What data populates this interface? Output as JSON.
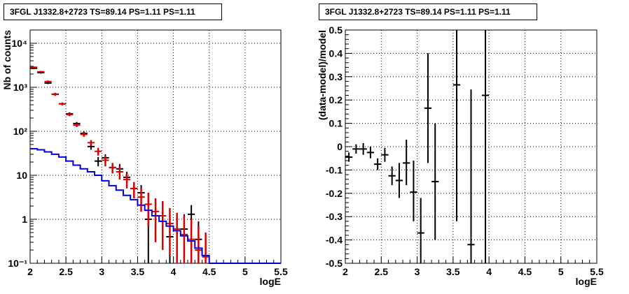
{
  "chart_data": [
    {
      "type": "scatter",
      "title": "3FGL J1332.8+2723 TS=89.14 PS=1.11 PS=1.11",
      "xlabel": "logE",
      "ylabel": "Nb of counts",
      "xlim": [
        2,
        5.5
      ],
      "ylim": [
        0.1,
        20000
      ],
      "yscale": "log",
      "grid": true,
      "xticks": [
        "2",
        "2.5",
        "3",
        "3.5",
        "4",
        "4.5",
        "5",
        "5.5"
      ],
      "yticks": [
        {
          "v": 0.1,
          "label": "10⁻¹"
        },
        {
          "v": 1,
          "label": "1"
        },
        {
          "v": 10,
          "label": "10"
        },
        {
          "v": 100,
          "label": "10²"
        },
        {
          "v": 1000,
          "label": "10³"
        },
        {
          "v": 10000,
          "label": "10⁴"
        }
      ],
      "series": [
        {
          "kind": "data-points",
          "color": "#000000",
          "x": [
            2.05,
            2.15,
            2.25,
            2.35,
            2.45,
            2.55,
            2.65,
            2.75,
            2.85,
            2.95,
            3.05,
            3.15,
            3.25,
            3.35,
            3.45,
            3.55,
            3.65,
            3.75,
            3.85,
            3.95,
            4.05,
            4.15,
            4.25,
            4.35,
            4.45
          ],
          "y": [
            2700,
            2150,
            1250,
            690,
            420,
            250,
            150,
            90,
            45,
            21,
            25,
            15,
            14,
            9,
            5,
            4,
            1,
            0.1,
            0.1,
            0.4,
            0.1,
            0.6,
            1.3,
            0.35,
            0.1
          ],
          "ylo": [
            2600,
            2050,
            1180,
            640,
            390,
            230,
            138,
            80,
            38,
            16,
            20,
            11,
            10,
            6,
            3,
            2,
            0.1,
            0.1,
            0.1,
            0.1,
            0.1,
            0.1,
            0.7,
            0.1,
            0.1
          ],
          "yhi": [
            2800,
            2250,
            1320,
            740,
            450,
            270,
            162,
            100,
            52,
            26,
            30,
            19,
            18,
            12,
            7,
            6,
            3,
            0.1,
            0.1,
            1.1,
            0.1,
            1.3,
            2.1,
            0.9,
            0.1
          ]
        },
        {
          "kind": "data-points",
          "color": "#dd0000",
          "x": [
            2.05,
            2.15,
            2.25,
            2.35,
            2.45,
            2.55,
            2.65,
            2.75,
            2.85,
            2.95,
            3.05,
            3.15,
            3.25,
            3.35,
            3.45,
            3.55,
            3.65,
            3.75,
            3.85,
            3.95,
            4.05,
            4.15,
            4.25,
            4.35,
            4.45
          ],
          "y": [
            2850,
            2250,
            1350,
            700,
            420,
            240,
            138,
            85,
            55,
            35,
            22,
            15,
            12,
            8,
            5,
            3.2,
            2.2,
            1.5,
            1.2,
            0.8,
            0.6,
            0.45,
            0.35,
            0.2,
            0.14
          ],
          "ylo": [
            2750,
            2150,
            1270,
            650,
            390,
            220,
            125,
            75,
            47,
            28,
            16,
            11,
            8,
            5,
            3,
            1.5,
            0.7,
            0.3,
            0.2,
            0.15,
            0.1,
            0.1,
            0.1,
            0.1,
            0.1
          ],
          "yhi": [
            2950,
            2350,
            1430,
            750,
            450,
            260,
            151,
            95,
            63,
            42,
            28,
            19,
            16,
            11,
            7,
            5,
            4,
            3,
            2.6,
            1.8,
            1.4,
            1.2,
            1.0,
            0.7,
            0.5
          ]
        },
        {
          "kind": "histogram",
          "color": "#0000dd",
          "edges": [
            2.0,
            2.1,
            2.2,
            2.3,
            2.4,
            2.5,
            2.6,
            2.7,
            2.8,
            2.9,
            3.0,
            3.1,
            3.2,
            3.3,
            3.4,
            3.5,
            3.6,
            3.7,
            3.8,
            3.9,
            4.0,
            4.1,
            4.2,
            4.3,
            4.4,
            4.5,
            4.6,
            4.7,
            4.8,
            4.9,
            5.0,
            5.1,
            5.2,
            5.3,
            5.4,
            5.5
          ],
          "values": [
            40,
            38,
            34,
            30,
            26,
            21,
            17,
            14,
            12,
            10,
            7.5,
            5.8,
            4.6,
            3.5,
            2.8,
            2.1,
            1.6,
            1.2,
            0.9,
            0.7,
            0.55,
            0.42,
            0.32,
            0.22,
            0.15,
            0.1,
            0.1,
            0.1,
            0.1,
            0.1,
            0.1,
            0.1,
            0.1,
            0.1,
            0.1
          ]
        }
      ]
    },
    {
      "type": "scatter",
      "title": "3FGL J1332.8+2723 TS=89.14 PS=1.11 PS=1.11",
      "xlabel": "logE",
      "ylabel": "(data-model)/model",
      "xlim": [
        2,
        5.5
      ],
      "ylim": [
        -0.5,
        0.5
      ],
      "grid": true,
      "xticks": [
        "2",
        "2.5",
        "3",
        "3.5",
        "4",
        "4.5",
        "5",
        "5.5"
      ],
      "yticks": [
        "-0.5",
        "-0.4",
        "-0.3",
        "-0.2",
        "-0.1",
        "0",
        "0.1",
        "0.2",
        "0.3",
        "0.4",
        "0.5"
      ],
      "series": [
        {
          "kind": "data-points",
          "color": "#000000",
          "x": [
            2.05,
            2.15,
            2.25,
            2.35,
            2.45,
            2.55,
            2.65,
            2.75,
            2.85,
            2.95,
            3.05,
            3.15,
            3.25,
            3.55,
            3.75,
            3.95
          ],
          "y": [
            -0.045,
            -0.01,
            -0.01,
            -0.025,
            -0.075,
            -0.035,
            -0.125,
            -0.145,
            -0.07,
            -0.195,
            -0.37,
            0.165,
            -0.15,
            0.265,
            -0.42,
            0.22
          ],
          "ylo": [
            -0.065,
            -0.03,
            -0.035,
            -0.05,
            -0.1,
            -0.065,
            -0.165,
            -0.22,
            -0.165,
            -0.32,
            -0.5,
            -0.07,
            -0.4,
            -0.32,
            -0.5,
            -0.5
          ],
          "yhi": [
            -0.025,
            0.01,
            0.015,
            0.0,
            -0.05,
            -0.005,
            -0.085,
            -0.07,
            0.03,
            -0.06,
            -0.22,
            0.4,
            0.1,
            0.5,
            0.245,
            0.5
          ]
        }
      ]
    }
  ]
}
